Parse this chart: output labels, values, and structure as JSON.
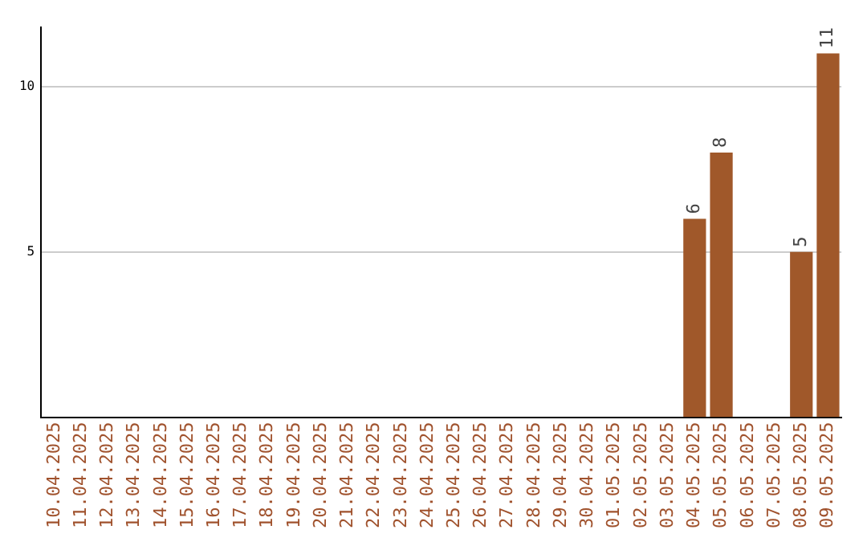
{
  "chart_data": {
    "type": "bar",
    "categories": [
      "10.04.2025",
      "11.04.2025",
      "12.04.2025",
      "13.04.2025",
      "14.04.2025",
      "15.04.2025",
      "16.04.2025",
      "17.04.2025",
      "18.04.2025",
      "19.04.2025",
      "20.04.2025",
      "21.04.2025",
      "22.04.2025",
      "23.04.2025",
      "24.04.2025",
      "25.04.2025",
      "26.04.2025",
      "27.04.2025",
      "28.04.2025",
      "29.04.2025",
      "30.04.2025",
      "01.05.2025",
      "02.05.2025",
      "03.05.2025",
      "04.05.2025",
      "05.05.2025",
      "06.05.2025",
      "07.05.2025",
      "08.05.2025",
      "09.05.2025"
    ],
    "values": [
      null,
      null,
      null,
      null,
      null,
      null,
      null,
      null,
      null,
      null,
      null,
      null,
      null,
      null,
      null,
      null,
      null,
      null,
      null,
      null,
      null,
      null,
      null,
      null,
      6,
      8,
      null,
      null,
      5,
      11
    ],
    "color": "#a0582a",
    "ylim": [
      0,
      11.8
    ],
    "yticks": [
      5,
      10
    ],
    "grid": "y",
    "data_labels": true,
    "legend": false
  }
}
